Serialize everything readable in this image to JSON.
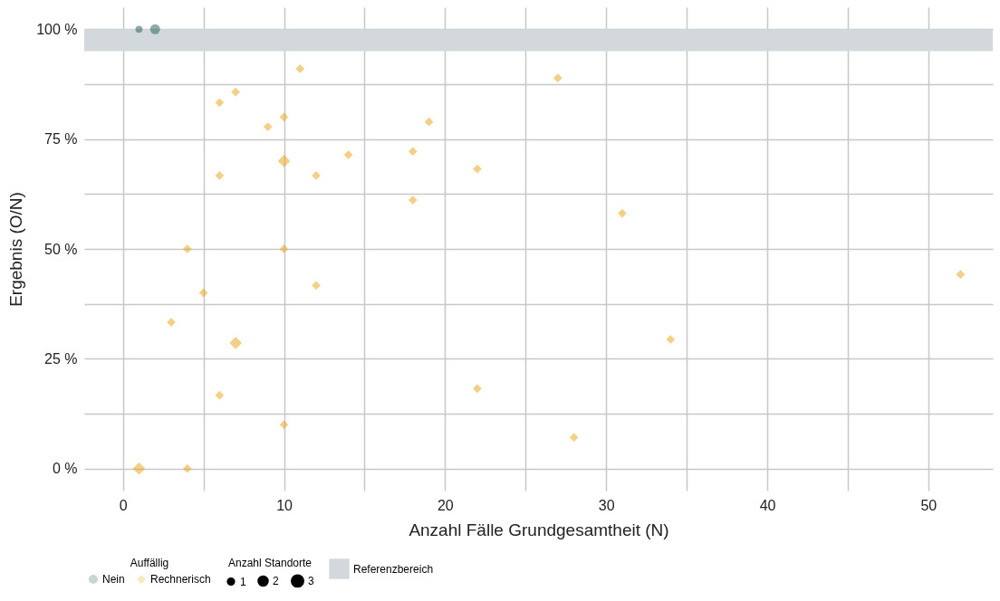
{
  "chart_data": {
    "type": "scatter",
    "xlabel": "Anzahl Fälle Grundgesamtheit (N)",
    "ylabel": "Ergebnis (O/N)",
    "legend_title": "Auffällig",
    "legend": "bottom",
    "grid": true,
    "xlim": [
      -2.4,
      54
    ],
    "ylim": [
      -5,
      105
    ],
    "xticks": [
      0,
      {
        "value": 5,
        "label": null
      },
      10,
      {
        "value": 15,
        "label": null
      },
      20,
      {
        "value": 25,
        "label": null
      },
      30,
      {
        "value": 35,
        "label": null
      },
      40,
      {
        "value": 45,
        "label": null
      },
      50
    ],
    "yticks": [
      {
        "value": 0,
        "label": "0 %"
      },
      {
        "value": 12.5,
        "label": null
      },
      {
        "value": 25,
        "label": "25 %"
      },
      {
        "value": 37.5,
        "label": null
      },
      {
        "value": 50,
        "label": "50 %"
      },
      {
        "value": 62.5,
        "label": null
      },
      {
        "value": 75,
        "label": "75 %"
      },
      {
        "value": 87.5,
        "label": null
      },
      {
        "value": 100,
        "label": "100 %"
      }
    ],
    "annotations": [
      "Anzahl Standorte"
    ],
    "size_legend": [
      1,
      2,
      3
    ],
    "bands": [
      {
        "axis": "y",
        "from": 95,
        "to": 100,
        "label": "Referenzbereich",
        "color": "#d3d8dc"
      }
    ],
    "series": [
      {
        "name": "Nein",
        "color": "#1b5c58",
        "marker": "circle",
        "x": [
          1,
          2
        ],
        "values": [
          100,
          100
        ],
        "sizes": [
          1,
          2
        ]
      },
      {
        "name": "Rechnerisch",
        "color": "#e8a10e",
        "marker": "diamond",
        "x": [
          11,
          27,
          7,
          6,
          10,
          19,
          9,
          18,
          14,
          10,
          22,
          6,
          12,
          18,
          31,
          4,
          10,
          52,
          12,
          5,
          3,
          34,
          7,
          22,
          6,
          10,
          28,
          1,
          4
        ],
        "values": [
          91,
          88.9,
          85.7,
          83.3,
          80,
          78.9,
          77.8,
          72.2,
          71.4,
          70,
          68.2,
          66.7,
          66.7,
          61.1,
          58.1,
          50,
          50,
          44.2,
          41.7,
          40,
          33.3,
          29.4,
          28.6,
          18.2,
          16.7,
          10,
          7.1,
          0,
          0
        ],
        "sizes": [
          1,
          1,
          1,
          1,
          1,
          1,
          1,
          1,
          1,
          2,
          1,
          1,
          1,
          1,
          1,
          1,
          1,
          1,
          1,
          1,
          1,
          1,
          2,
          1,
          1,
          1,
          1,
          2,
          1
        ]
      }
    ]
  }
}
